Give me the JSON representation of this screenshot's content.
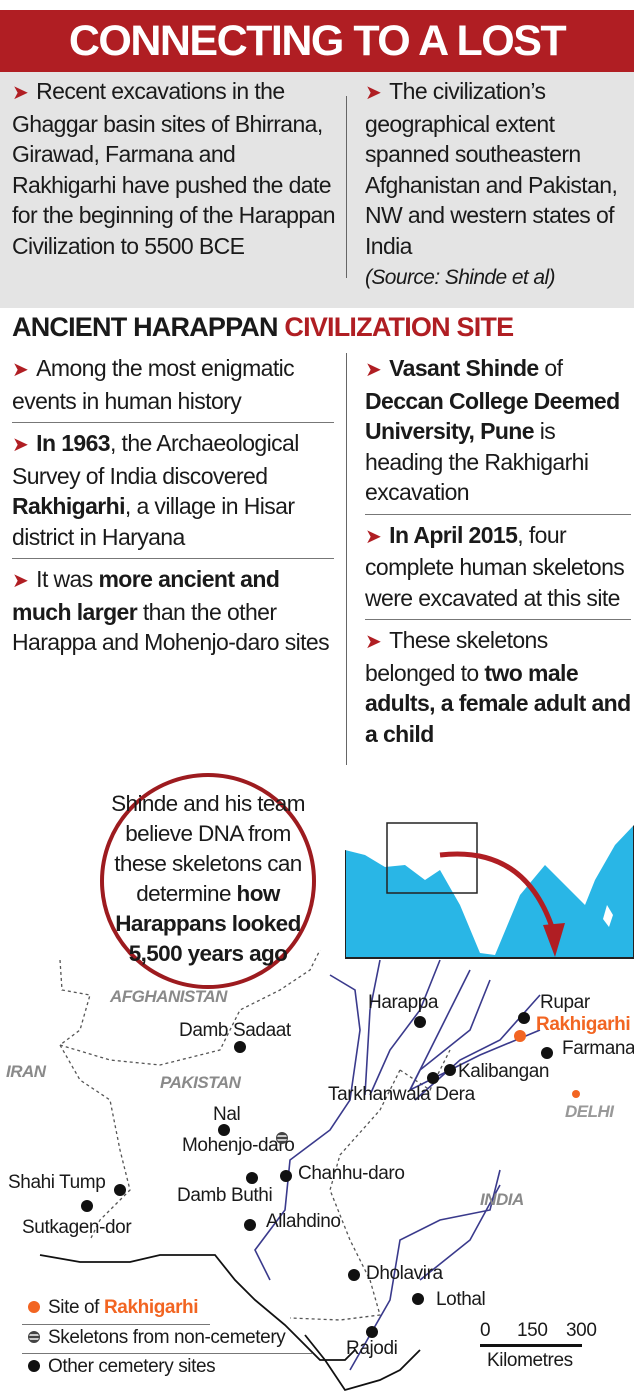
{
  "title": "CONNECTING TO A LOST WORLD",
  "intro": {
    "left": "Recent excavations in the Ghaggar basin sites of Bhirrana, Girawad, Farmana and Rakhigarhi have pushed the date for the beginning of the Harappan Civilization to 5500 BCE",
    "right": "The civilization’s geographical extent spanned southeastern Afghanistan and Pakistan, NW and western states of India",
    "source": "(Source: Shinde et al)"
  },
  "section": {
    "title_dark": "ANCIENT HARAPPAN",
    "title_red": "CIVILIZATION SITE"
  },
  "bullets_left": [
    {
      "s": [
        {
          "t": "Among the most enigmatic events in human history",
          "b": false
        }
      ]
    },
    {
      "s": [
        {
          "t": "In 1963",
          "b": true
        },
        {
          "t": ", the Archaeological Survey of India discovered ",
          "b": false
        },
        {
          "t": "Rakhigarhi",
          "b": true
        },
        {
          "t": ", a village in Hisar district in Haryana",
          "b": false
        }
      ]
    },
    {
      "s": [
        {
          "t": "It was ",
          "b": false
        },
        {
          "t": "more ancient and much larger",
          "b": true
        },
        {
          "t": " than the other Harappa and Mohenjo-daro sites",
          "b": false
        }
      ]
    }
  ],
  "bullets_right": [
    {
      "s": [
        {
          "t": "Vasant Shinde",
          "b": true
        },
        {
          "t": " of ",
          "b": false
        },
        {
          "t": "Deccan College Deemed University, Pune",
          "b": true
        },
        {
          "t": " is heading the Rakhigarhi excavation",
          "b": false
        }
      ]
    },
    {
      "s": [
        {
          "t": "In April 2015",
          "b": true
        },
        {
          "t": ", four complete human skeletons were excavated at this site",
          "b": false
        }
      ]
    },
    {
      "s": [
        {
          "t": "These skeletons belonged to ",
          "b": false
        },
        {
          "t": "two male adults, a female adult and a child",
          "b": true
        }
      ]
    }
  ],
  "callout": {
    "plain": "Shinde and his team believe DNA from these skeletons can determine ",
    "bold": "how Harappans looked 5,500 years ago"
  },
  "map": {
    "countries": [
      "AFGHANISTAN",
      "IRAN",
      "PAKISTAN",
      "INDIA"
    ],
    "city": "DELHI",
    "sites": [
      "Harappa",
      "Rupar",
      "Rakhigarhi",
      "Farmana",
      "Kalibangan",
      "Tarkhanwala Dera",
      "Damb Sadaat",
      "Nal",
      "Mohenjo-daro",
      "Chanhu-daro",
      "Shahi Tump",
      "Damb Buthi",
      "Sutkagen-dor",
      "Allahdino",
      "Dholavira",
      "Lothal",
      "Rajodi"
    ],
    "scale": {
      "ticks": [
        "0",
        "150",
        "300"
      ],
      "unit": "Kilometres"
    },
    "legend": {
      "site_prefix": "Site of ",
      "site_name": "Rakhigarhi",
      "skeletons": "Skeletons from non-cemetery",
      "other": "Other cemetery sites"
    },
    "colors": {
      "rakhigarhi": "#f26522",
      "river": "#3a3a8c",
      "sea": "#29b6e6",
      "accent": "#b01e23"
    }
  }
}
